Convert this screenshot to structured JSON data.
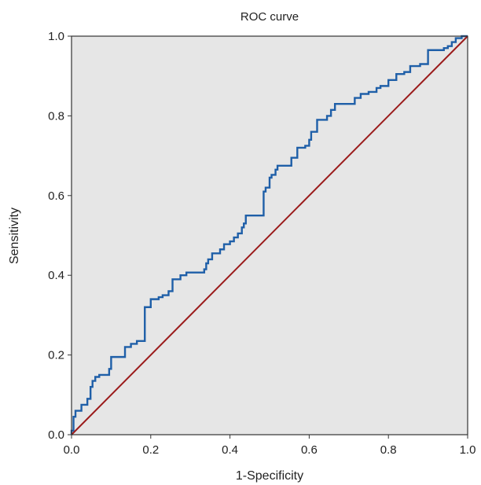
{
  "chart_data": {
    "type": "line",
    "title": "ROC curve",
    "xlabel": "1-Specificity",
    "ylabel": "Sensitivity",
    "xlim": [
      0.0,
      1.0
    ],
    "ylim": [
      0.0,
      1.0
    ],
    "x_ticks": [
      "0.0",
      "0.2",
      "0.4",
      "0.6",
      "0.8",
      "1.0"
    ],
    "y_ticks": [
      "0.0",
      "0.2",
      "0.4",
      "0.6",
      "0.8",
      "1.0"
    ],
    "grid": false,
    "background_color": "#e6e6e6",
    "series": [
      {
        "color": "#1f5fa8",
        "step": true,
        "points": [
          [
            0.0,
            0.0
          ],
          [
            0.0,
            0.01
          ],
          [
            0.005,
            0.01
          ],
          [
            0.005,
            0.045
          ],
          [
            0.01,
            0.045
          ],
          [
            0.01,
            0.06
          ],
          [
            0.025,
            0.06
          ],
          [
            0.025,
            0.075
          ],
          [
            0.04,
            0.075
          ],
          [
            0.04,
            0.09
          ],
          [
            0.048,
            0.09
          ],
          [
            0.048,
            0.12
          ],
          [
            0.053,
            0.12
          ],
          [
            0.053,
            0.135
          ],
          [
            0.06,
            0.135
          ],
          [
            0.06,
            0.145
          ],
          [
            0.07,
            0.145
          ],
          [
            0.07,
            0.15
          ],
          [
            0.095,
            0.15
          ],
          [
            0.095,
            0.165
          ],
          [
            0.1,
            0.165
          ],
          [
            0.1,
            0.195
          ],
          [
            0.135,
            0.195
          ],
          [
            0.135,
            0.22
          ],
          [
            0.15,
            0.22
          ],
          [
            0.15,
            0.228
          ],
          [
            0.165,
            0.228
          ],
          [
            0.165,
            0.235
          ],
          [
            0.185,
            0.235
          ],
          [
            0.185,
            0.32
          ],
          [
            0.2,
            0.32
          ],
          [
            0.2,
            0.34
          ],
          [
            0.22,
            0.34
          ],
          [
            0.22,
            0.345
          ],
          [
            0.23,
            0.345
          ],
          [
            0.23,
            0.35
          ],
          [
            0.245,
            0.35
          ],
          [
            0.245,
            0.36
          ],
          [
            0.255,
            0.36
          ],
          [
            0.255,
            0.39
          ],
          [
            0.275,
            0.39
          ],
          [
            0.275,
            0.4
          ],
          [
            0.29,
            0.4
          ],
          [
            0.29,
            0.407
          ],
          [
            0.335,
            0.407
          ],
          [
            0.335,
            0.415
          ],
          [
            0.34,
            0.415
          ],
          [
            0.34,
            0.43
          ],
          [
            0.345,
            0.43
          ],
          [
            0.345,
            0.44
          ],
          [
            0.355,
            0.44
          ],
          [
            0.355,
            0.455
          ],
          [
            0.375,
            0.455
          ],
          [
            0.375,
            0.465
          ],
          [
            0.385,
            0.465
          ],
          [
            0.385,
            0.478
          ],
          [
            0.4,
            0.478
          ],
          [
            0.4,
            0.485
          ],
          [
            0.41,
            0.485
          ],
          [
            0.41,
            0.495
          ],
          [
            0.42,
            0.495
          ],
          [
            0.42,
            0.505
          ],
          [
            0.43,
            0.505
          ],
          [
            0.43,
            0.52
          ],
          [
            0.435,
            0.52
          ],
          [
            0.435,
            0.53
          ],
          [
            0.44,
            0.53
          ],
          [
            0.44,
            0.55
          ],
          [
            0.485,
            0.55
          ],
          [
            0.485,
            0.61
          ],
          [
            0.49,
            0.61
          ],
          [
            0.49,
            0.62
          ],
          [
            0.5,
            0.62
          ],
          [
            0.5,
            0.645
          ],
          [
            0.505,
            0.645
          ],
          [
            0.505,
            0.652
          ],
          [
            0.515,
            0.652
          ],
          [
            0.515,
            0.665
          ],
          [
            0.52,
            0.665
          ],
          [
            0.52,
            0.675
          ],
          [
            0.555,
            0.675
          ],
          [
            0.555,
            0.695
          ],
          [
            0.57,
            0.695
          ],
          [
            0.57,
            0.72
          ],
          [
            0.59,
            0.72
          ],
          [
            0.59,
            0.725
          ],
          [
            0.6,
            0.725
          ],
          [
            0.6,
            0.74
          ],
          [
            0.605,
            0.74
          ],
          [
            0.605,
            0.76
          ],
          [
            0.62,
            0.76
          ],
          [
            0.62,
            0.79
          ],
          [
            0.645,
            0.79
          ],
          [
            0.645,
            0.8
          ],
          [
            0.655,
            0.8
          ],
          [
            0.655,
            0.815
          ],
          [
            0.665,
            0.815
          ],
          [
            0.665,
            0.83
          ],
          [
            0.715,
            0.83
          ],
          [
            0.715,
            0.845
          ],
          [
            0.73,
            0.845
          ],
          [
            0.73,
            0.855
          ],
          [
            0.75,
            0.855
          ],
          [
            0.75,
            0.86
          ],
          [
            0.77,
            0.86
          ],
          [
            0.77,
            0.87
          ],
          [
            0.78,
            0.87
          ],
          [
            0.78,
            0.875
          ],
          [
            0.8,
            0.875
          ],
          [
            0.8,
            0.89
          ],
          [
            0.82,
            0.89
          ],
          [
            0.82,
            0.905
          ],
          [
            0.84,
            0.905
          ],
          [
            0.84,
            0.91
          ],
          [
            0.855,
            0.91
          ],
          [
            0.855,
            0.925
          ],
          [
            0.88,
            0.925
          ],
          [
            0.88,
            0.93
          ],
          [
            0.9,
            0.93
          ],
          [
            0.9,
            0.965
          ],
          [
            0.94,
            0.965
          ],
          [
            0.94,
            0.97
          ],
          [
            0.95,
            0.97
          ],
          [
            0.95,
            0.975
          ],
          [
            0.96,
            0.975
          ],
          [
            0.96,
            0.985
          ],
          [
            0.97,
            0.985
          ],
          [
            0.97,
            0.995
          ],
          [
            0.985,
            0.995
          ],
          [
            0.985,
            1.0
          ],
          [
            1.0,
            1.0
          ]
        ]
      },
      {
        "color": "#9b1b1b",
        "step": false,
        "points": [
          [
            0.0,
            0.0
          ],
          [
            1.0,
            1.0
          ]
        ]
      }
    ]
  }
}
